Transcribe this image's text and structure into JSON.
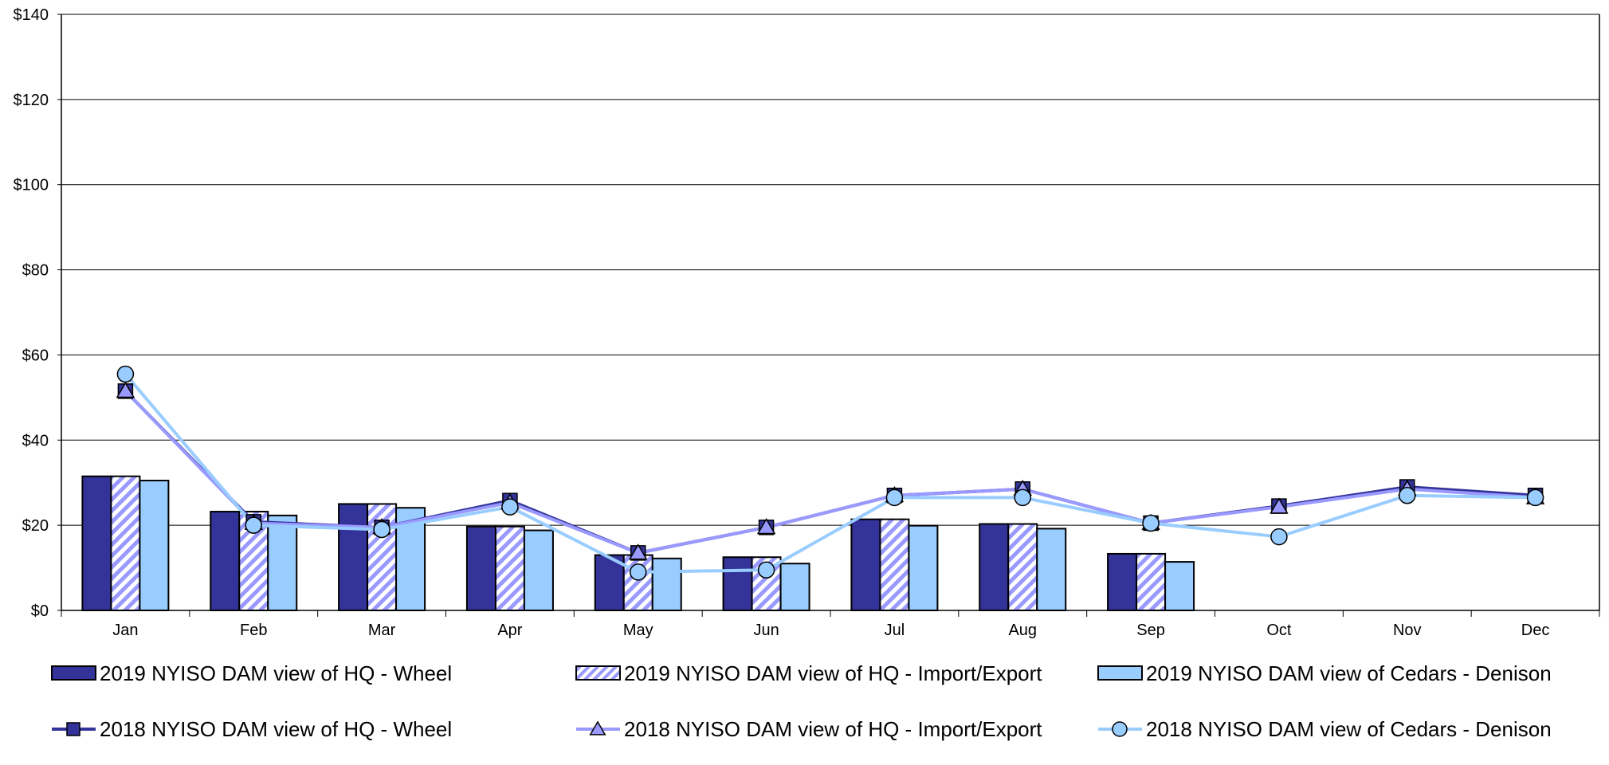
{
  "chart_data": {
    "type": "bar",
    "categories": [
      "Jan",
      "Feb",
      "Mar",
      "Apr",
      "May",
      "Jun",
      "Jul",
      "Aug",
      "Sep",
      "Oct",
      "Nov",
      "Dec"
    ],
    "y_ticks": [
      "$0",
      "$20",
      "$40",
      "$60",
      "$80",
      "$100",
      "$120",
      "$140"
    ],
    "ylim": [
      0,
      140
    ],
    "grid": true,
    "legend_placement": "bottom",
    "bar_series": [
      {
        "name": "2019 NYISO DAM view of HQ - Wheel",
        "color": "#333399",
        "pattern": "solid",
        "values": [
          31.5,
          23.2,
          25.0,
          19.7,
          13.0,
          12.5,
          21.4,
          20.3,
          13.3,
          null,
          null,
          null
        ]
      },
      {
        "name": "2019 NYISO DAM view of HQ - Import/Export",
        "color": "#9999ff",
        "pattern": "hatch",
        "values": [
          31.5,
          23.2,
          25.0,
          19.7,
          13.0,
          12.5,
          21.4,
          20.3,
          13.3,
          null,
          null,
          null
        ]
      },
      {
        "name": "2019 NYISO DAM view of Cedars - Denison",
        "color": "#99ccff",
        "pattern": "solid",
        "values": [
          30.5,
          22.3,
          24.1,
          18.8,
          12.2,
          11.0,
          19.9,
          19.2,
          11.4,
          null,
          null,
          null
        ]
      }
    ],
    "line_series": [
      {
        "name": "2018 NYISO DAM view of HQ - Wheel",
        "color": "#333399",
        "marker": "square",
        "values": [
          51.5,
          20.8,
          19.5,
          25.8,
          13.5,
          19.5,
          27.0,
          28.5,
          20.5,
          24.5,
          29.0,
          27.0
        ]
      },
      {
        "name": "2018 NYISO DAM view of HQ - Import/Export",
        "color": "#9999ff",
        "marker": "triangle",
        "values": [
          51.5,
          20.5,
          19.5,
          25.3,
          13.5,
          19.5,
          27.0,
          28.5,
          20.5,
          24.3,
          28.5,
          26.5
        ]
      },
      {
        "name": "2018 NYISO DAM view of Cedars - Denison",
        "color": "#99ccff",
        "marker": "circle",
        "values": [
          55.5,
          20.0,
          19.0,
          24.3,
          9.0,
          9.5,
          26.5,
          26.5,
          20.5,
          17.3,
          27.0,
          26.5
        ]
      }
    ]
  }
}
